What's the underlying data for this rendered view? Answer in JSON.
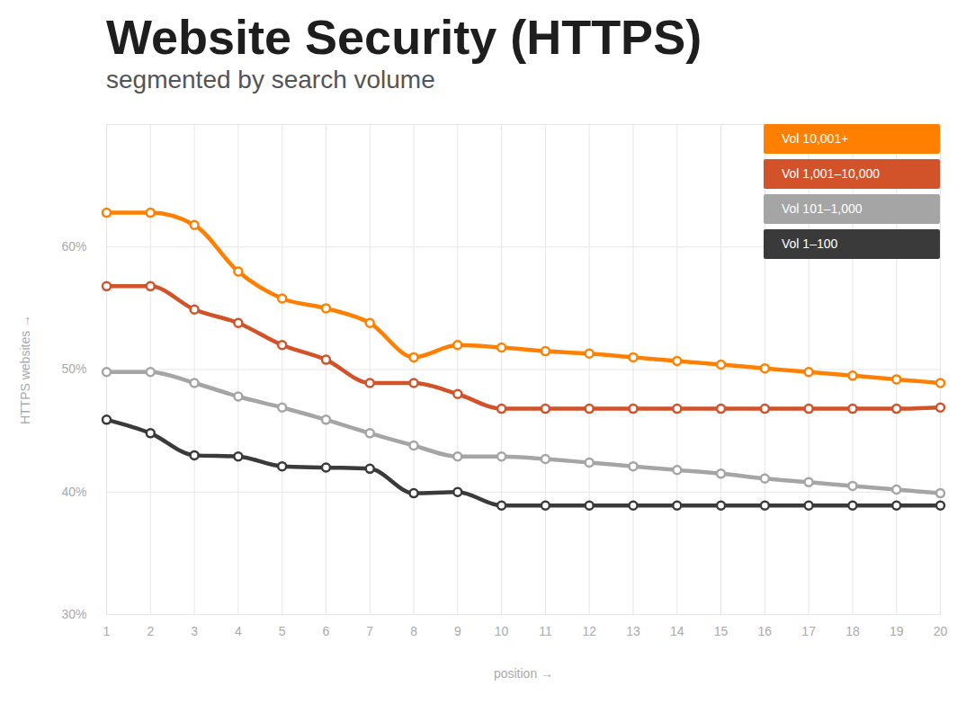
{
  "chart_data": {
    "type": "line",
    "title": "Website Security (HTTPS)",
    "subtitle": "segmented by search volume",
    "x_label": "position",
    "y_label": "HTTPS websites",
    "x": [
      1,
      2,
      3,
      4,
      5,
      6,
      7,
      8,
      9,
      10,
      11,
      12,
      13,
      14,
      15,
      16,
      17,
      18,
      19,
      20
    ],
    "series": [
      {
        "name": "Vol 10,001+",
        "color": "#ff8000",
        "values": [
          62.8,
          62.8,
          61.8,
          58,
          55.8,
          55,
          53.8,
          51,
          52,
          51.8,
          51.5,
          51.3,
          51,
          50.7,
          50.4,
          50.1,
          49.8,
          49.5,
          49.2,
          48.9
        ]
      },
      {
        "name": "Vol 1,001–10,000",
        "color": "#d2522a",
        "values": [
          56.8,
          56.8,
          54.9,
          53.8,
          52,
          50.8,
          48.9,
          48.9,
          48,
          46.8,
          46.8,
          46.8,
          46.8,
          46.8,
          46.8,
          46.8,
          46.8,
          46.8,
          46.8,
          46.9
        ]
      },
      {
        "name": "Vol 101–1,000",
        "color": "#a5a5a5",
        "values": [
          49.8,
          49.8,
          48.9,
          47.8,
          46.9,
          45.9,
          44.8,
          43.8,
          42.9,
          42.9,
          42.7,
          42.4,
          42.1,
          41.8,
          41.5,
          41.1,
          40.8,
          40.5,
          40.2,
          39.9
        ]
      },
      {
        "name": "Vol 1–100",
        "color": "#3a3a3a",
        "values": [
          45.9,
          44.8,
          43,
          42.9,
          42.1,
          42,
          41.9,
          39.9,
          40,
          38.9,
          38.9,
          38.9,
          38.9,
          38.9,
          38.9,
          38.9,
          38.9,
          38.9,
          38.9,
          38.9
        ]
      }
    ],
    "xlim": [
      1,
      20
    ],
    "xticks": [
      1,
      2,
      3,
      4,
      5,
      6,
      7,
      8,
      9,
      10,
      11,
      12,
      13,
      14,
      15,
      16,
      17,
      18,
      19,
      20
    ],
    "ylim": [
      30,
      70
    ],
    "yticks": [
      {
        "value": 30,
        "label": "30%"
      },
      {
        "value": 40,
        "label": "40%"
      },
      {
        "value": 50,
        "label": "50%"
      },
      {
        "value": 60,
        "label": "60%"
      }
    ],
    "grid": true,
    "legend": "top-right",
    "marker": "circle"
  }
}
